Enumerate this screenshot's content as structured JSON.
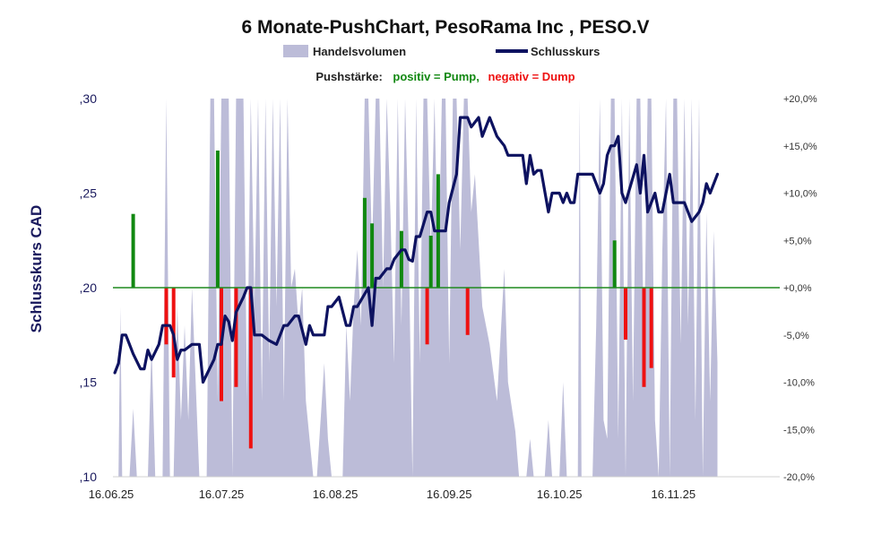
{
  "chart_data": {
    "type": "line",
    "title": "6 Monate-PushChart, PesoRama Inc , PESO.V",
    "legend": [
      {
        "name": "Handelsvolumen",
        "color": "#bcbcd8"
      },
      {
        "name": "Schlusskurs",
        "color": "#0d1260"
      }
    ],
    "push_label": "Pushstärke:",
    "push_positive": "positiv = Pump,",
    "push_negative": "negativ = Dump",
    "ylabel": "Schlusskurs CAD",
    "ylim": [
      0.1,
      0.3
    ],
    "yticks": [
      ",30",
      ",25",
      ",20",
      ",15",
      ",10"
    ],
    "y2lim": [
      -20,
      20
    ],
    "y2ticks": [
      "+20,0%",
      "+15,0%",
      "+10,0%",
      "+5,0%",
      "+0,0%",
      "-5,0%",
      "-10,0%",
      "-15,0%",
      "-20,0%"
    ],
    "xticks": [
      "16.06.25",
      "16.07.25",
      "16.08.25",
      "16.09.25",
      "16.10.25",
      "16.11.25"
    ],
    "xrange_days": [
      0,
      183
    ],
    "colors": {
      "close": "#0d1260",
      "volume": "#bcbcd8",
      "pump": "#118811",
      "dump": "#ee1111",
      "zero": "#1f8a1f"
    },
    "close": [
      {
        "d": 1,
        "y": 0.155
      },
      {
        "d": 2,
        "y": 0.16
      },
      {
        "d": 3,
        "y": 0.175
      },
      {
        "d": 4,
        "y": 0.175
      },
      {
        "d": 6,
        "y": 0.165
      },
      {
        "d": 8,
        "y": 0.157
      },
      {
        "d": 9,
        "y": 0.157
      },
      {
        "d": 10,
        "y": 0.167
      },
      {
        "d": 11,
        "y": 0.162
      },
      {
        "d": 13,
        "y": 0.17
      },
      {
        "d": 14,
        "y": 0.18
      },
      {
        "d": 16,
        "y": 0.18
      },
      {
        "d": 17,
        "y": 0.175
      },
      {
        "d": 18,
        "y": 0.162
      },
      {
        "d": 19,
        "y": 0.167
      },
      {
        "d": 20,
        "y": 0.167
      },
      {
        "d": 22,
        "y": 0.17
      },
      {
        "d": 24,
        "y": 0.17
      },
      {
        "d": 25,
        "y": 0.15
      },
      {
        "d": 28,
        "y": 0.162
      },
      {
        "d": 29,
        "y": 0.17
      },
      {
        "d": 30,
        "y": 0.17
      },
      {
        "d": 31,
        "y": 0.185
      },
      {
        "d": 32,
        "y": 0.182
      },
      {
        "d": 33,
        "y": 0.172
      },
      {
        "d": 34,
        "y": 0.187
      },
      {
        "d": 36,
        "y": 0.195
      },
      {
        "d": 37,
        "y": 0.2
      },
      {
        "d": 38,
        "y": 0.2
      },
      {
        "d": 39,
        "y": 0.175
      },
      {
        "d": 40,
        "y": 0.175
      },
      {
        "d": 41,
        "y": 0.175
      },
      {
        "d": 43,
        "y": 0.172
      },
      {
        "d": 45,
        "y": 0.17
      },
      {
        "d": 46,
        "y": 0.175
      },
      {
        "d": 47,
        "y": 0.18
      },
      {
        "d": 48,
        "y": 0.18
      },
      {
        "d": 50,
        "y": 0.185
      },
      {
        "d": 51,
        "y": 0.185
      },
      {
        "d": 53,
        "y": 0.17
      },
      {
        "d": 54,
        "y": 0.18
      },
      {
        "d": 55,
        "y": 0.175
      },
      {
        "d": 56,
        "y": 0.175
      },
      {
        "d": 58,
        "y": 0.175
      },
      {
        "d": 59,
        "y": 0.19
      },
      {
        "d": 60,
        "y": 0.19
      },
      {
        "d": 62,
        "y": 0.195
      },
      {
        "d": 64,
        "y": 0.18
      },
      {
        "d": 65,
        "y": 0.18
      },
      {
        "d": 66,
        "y": 0.19
      },
      {
        "d": 67,
        "y": 0.19
      },
      {
        "d": 70,
        "y": 0.2
      },
      {
        "d": 71,
        "y": 0.18
      },
      {
        "d": 72,
        "y": 0.205
      },
      {
        "d": 73,
        "y": 0.205
      },
      {
        "d": 75,
        "y": 0.21
      },
      {
        "d": 76,
        "y": 0.21
      },
      {
        "d": 77,
        "y": 0.215
      },
      {
        "d": 79,
        "y": 0.22
      },
      {
        "d": 80,
        "y": 0.22
      },
      {
        "d": 81,
        "y": 0.215
      },
      {
        "d": 82,
        "y": 0.214
      },
      {
        "d": 83,
        "y": 0.227
      },
      {
        "d": 84,
        "y": 0.227
      },
      {
        "d": 86,
        "y": 0.24
      },
      {
        "d": 87,
        "y": 0.24
      },
      {
        "d": 88,
        "y": 0.23
      },
      {
        "d": 90,
        "y": 0.23
      },
      {
        "d": 91,
        "y": 0.23
      },
      {
        "d": 92,
        "y": 0.245
      },
      {
        "d": 94,
        "y": 0.26
      },
      {
        "d": 95,
        "y": 0.29
      },
      {
        "d": 97,
        "y": 0.29
      },
      {
        "d": 98,
        "y": 0.285
      },
      {
        "d": 100,
        "y": 0.29
      },
      {
        "d": 101,
        "y": 0.28
      },
      {
        "d": 103,
        "y": 0.29
      },
      {
        "d": 105,
        "y": 0.28
      },
      {
        "d": 107,
        "y": 0.275
      },
      {
        "d": 108,
        "y": 0.27
      },
      {
        "d": 110,
        "y": 0.27
      },
      {
        "d": 112,
        "y": 0.27
      },
      {
        "d": 113,
        "y": 0.255
      },
      {
        "d": 114,
        "y": 0.27
      },
      {
        "d": 115,
        "y": 0.26
      },
      {
        "d": 116,
        "y": 0.262
      },
      {
        "d": 117,
        "y": 0.262
      },
      {
        "d": 119,
        "y": 0.24
      },
      {
        "d": 120,
        "y": 0.25
      },
      {
        "d": 122,
        "y": 0.25
      },
      {
        "d": 123,
        "y": 0.245
      },
      {
        "d": 124,
        "y": 0.25
      },
      {
        "d": 125,
        "y": 0.245
      },
      {
        "d": 126,
        "y": 0.245
      },
      {
        "d": 127,
        "y": 0.26
      },
      {
        "d": 131,
        "y": 0.26
      },
      {
        "d": 133,
        "y": 0.25
      },
      {
        "d": 134,
        "y": 0.255
      },
      {
        "d": 135,
        "y": 0.27
      },
      {
        "d": 136,
        "y": 0.275
      },
      {
        "d": 137,
        "y": 0.275
      },
      {
        "d": 138,
        "y": 0.28
      },
      {
        "d": 139,
        "y": 0.25
      },
      {
        "d": 140,
        "y": 0.245
      },
      {
        "d": 143,
        "y": 0.265
      },
      {
        "d": 144,
        "y": 0.25
      },
      {
        "d": 145,
        "y": 0.27
      },
      {
        "d": 146,
        "y": 0.24
      },
      {
        "d": 148,
        "y": 0.25
      },
      {
        "d": 149,
        "y": 0.24
      },
      {
        "d": 150,
        "y": 0.24
      },
      {
        "d": 152,
        "y": 0.26
      },
      {
        "d": 153,
        "y": 0.245
      },
      {
        "d": 156,
        "y": 0.245
      },
      {
        "d": 158,
        "y": 0.235
      },
      {
        "d": 160,
        "y": 0.24
      },
      {
        "d": 161,
        "y": 0.245
      },
      {
        "d": 162,
        "y": 0.255
      },
      {
        "d": 163,
        "y": 0.25
      },
      {
        "d": 165,
        "y": 0.26
      }
    ],
    "push": [
      {
        "d": 6,
        "v": 7.8
      },
      {
        "d": 15,
        "v": -6.0
      },
      {
        "d": 17,
        "v": -9.5
      },
      {
        "d": 29,
        "v": 14.5
      },
      {
        "d": 30,
        "v": -12.0
      },
      {
        "d": 34,
        "v": -10.5
      },
      {
        "d": 38,
        "v": -17.0
      },
      {
        "d": 69,
        "v": 9.5
      },
      {
        "d": 71,
        "v": 6.8
      },
      {
        "d": 79,
        "v": 6.0
      },
      {
        "d": 86,
        "v": -6.0
      },
      {
        "d": 87,
        "v": 5.5
      },
      {
        "d": 89,
        "v": 12.0
      },
      {
        "d": 97,
        "v": -5.0
      },
      {
        "d": 137,
        "v": 5.0
      },
      {
        "d": 140,
        "v": -5.5
      },
      {
        "d": 145,
        "v": -10.5
      },
      {
        "d": 147,
        "v": -8.5
      }
    ],
    "volume_scale": [
      0,
      100
    ],
    "volume": [
      {
        "d": 0,
        "v": 0
      },
      {
        "d": 2,
        "v": 0
      },
      {
        "d": 2.5,
        "v": 45
      },
      {
        "d": 3,
        "v": 0
      },
      {
        "d": 5,
        "v": 0
      },
      {
        "d": 6,
        "v": 18
      },
      {
        "d": 7,
        "v": 0
      },
      {
        "d": 10,
        "v": 0
      },
      {
        "d": 11,
        "v": 35
      },
      {
        "d": 12,
        "v": 0
      },
      {
        "d": 14,
        "v": 0
      },
      {
        "d": 15,
        "v": 100
      },
      {
        "d": 16,
        "v": 0
      },
      {
        "d": 17,
        "v": 0
      },
      {
        "d": 18,
        "v": 45
      },
      {
        "d": 19,
        "v": 15
      },
      {
        "d": 20,
        "v": 40
      },
      {
        "d": 21,
        "v": 15
      },
      {
        "d": 22,
        "v": 50
      },
      {
        "d": 24,
        "v": 0
      },
      {
        "d": 26,
        "v": 0
      },
      {
        "d": 27,
        "v": 100
      },
      {
        "d": 28,
        "v": 100
      },
      {
        "d": 29,
        "v": 20
      },
      {
        "d": 30,
        "v": 100
      },
      {
        "d": 32,
        "v": 100
      },
      {
        "d": 33,
        "v": 0
      },
      {
        "d": 34,
        "v": 100
      },
      {
        "d": 36,
        "v": 100
      },
      {
        "d": 37,
        "v": 20
      },
      {
        "d": 38,
        "v": 100
      },
      {
        "d": 39,
        "v": 45
      },
      {
        "d": 40,
        "v": 100
      },
      {
        "d": 41,
        "v": 20
      },
      {
        "d": 42,
        "v": 100
      },
      {
        "d": 43,
        "v": 30
      },
      {
        "d": 44,
        "v": 100
      },
      {
        "d": 45,
        "v": 45
      },
      {
        "d": 46,
        "v": 100
      },
      {
        "d": 47,
        "v": 20
      },
      {
        "d": 48,
        "v": 100
      },
      {
        "d": 49,
        "v": 50
      },
      {
        "d": 50,
        "v": 55
      },
      {
        "d": 51,
        "v": 40
      },
      {
        "d": 52,
        "v": 50
      },
      {
        "d": 53,
        "v": 20
      },
      {
        "d": 55,
        "v": 0
      },
      {
        "d": 56,
        "v": 0
      },
      {
        "d": 57,
        "v": 15
      },
      {
        "d": 58,
        "v": 30
      },
      {
        "d": 59,
        "v": 10
      },
      {
        "d": 60,
        "v": 0
      },
      {
        "d": 63,
        "v": 0
      },
      {
        "d": 64,
        "v": 40
      },
      {
        "d": 65,
        "v": 20
      },
      {
        "d": 66,
        "v": 45
      },
      {
        "d": 67,
        "v": 60
      },
      {
        "d": 68,
        "v": 40
      },
      {
        "d": 69,
        "v": 100
      },
      {
        "d": 70,
        "v": 100
      },
      {
        "d": 71,
        "v": 60
      },
      {
        "d": 72,
        "v": 100
      },
      {
        "d": 73,
        "v": 100
      },
      {
        "d": 74,
        "v": 50
      },
      {
        "d": 75,
        "v": 100
      },
      {
        "d": 76,
        "v": 70
      },
      {
        "d": 77,
        "v": 30
      },
      {
        "d": 78,
        "v": 100
      },
      {
        "d": 79,
        "v": 40
      },
      {
        "d": 80,
        "v": 100
      },
      {
        "d": 81,
        "v": 60
      },
      {
        "d": 82,
        "v": 0
      },
      {
        "d": 83,
        "v": 100
      },
      {
        "d": 84,
        "v": 30
      },
      {
        "d": 85,
        "v": 100
      },
      {
        "d": 86,
        "v": 100
      },
      {
        "d": 87,
        "v": 60
      },
      {
        "d": 88,
        "v": 100
      },
      {
        "d": 89,
        "v": 50
      },
      {
        "d": 90,
        "v": 100
      },
      {
        "d": 91,
        "v": 100
      },
      {
        "d": 92,
        "v": 30
      },
      {
        "d": 93,
        "v": 100
      },
      {
        "d": 94,
        "v": 100
      },
      {
        "d": 95,
        "v": 60
      },
      {
        "d": 96,
        "v": 100
      },
      {
        "d": 97,
        "v": 100
      },
      {
        "d": 98,
        "v": 70
      },
      {
        "d": 99,
        "v": 80
      },
      {
        "d": 101,
        "v": 45
      },
      {
        "d": 103,
        "v": 35
      },
      {
        "d": 105,
        "v": 20
      },
      {
        "d": 107,
        "v": 55
      },
      {
        "d": 108,
        "v": 25
      },
      {
        "d": 110,
        "v": 12
      },
      {
        "d": 111,
        "v": 0
      },
      {
        "d": 113,
        "v": 0
      },
      {
        "d": 114,
        "v": 10
      },
      {
        "d": 115,
        "v": 0
      },
      {
        "d": 118,
        "v": 0
      },
      {
        "d": 119,
        "v": 15
      },
      {
        "d": 120,
        "v": 0
      },
      {
        "d": 122,
        "v": 0
      },
      {
        "d": 123,
        "v": 25
      },
      {
        "d": 124,
        "v": 0
      },
      {
        "d": 127,
        "v": 0
      },
      {
        "d": 127.5,
        "v": 100
      },
      {
        "d": 128,
        "v": 0
      },
      {
        "d": 131,
        "v": 0
      },
      {
        "d": 132,
        "v": 40
      },
      {
        "d": 133,
        "v": 100
      },
      {
        "d": 134,
        "v": 15
      },
      {
        "d": 135,
        "v": 10
      },
      {
        "d": 136,
        "v": 100
      },
      {
        "d": 137,
        "v": 100
      },
      {
        "d": 138,
        "v": 10
      },
      {
        "d": 139,
        "v": 100
      },
      {
        "d": 140,
        "v": 0
      },
      {
        "d": 141,
        "v": 100
      },
      {
        "d": 142,
        "v": 20
      },
      {
        "d": 143,
        "v": 100
      },
      {
        "d": 144,
        "v": 100
      },
      {
        "d": 145,
        "v": 30
      },
      {
        "d": 146,
        "v": 100
      },
      {
        "d": 147,
        "v": 100
      },
      {
        "d": 148,
        "v": 15
      },
      {
        "d": 149,
        "v": 0
      },
      {
        "d": 150,
        "v": 60
      },
      {
        "d": 151,
        "v": 100
      },
      {
        "d": 152,
        "v": 0
      },
      {
        "d": 153,
        "v": 100
      },
      {
        "d": 154,
        "v": 100
      },
      {
        "d": 155,
        "v": 35
      },
      {
        "d": 156,
        "v": 100
      },
      {
        "d": 157,
        "v": 40
      },
      {
        "d": 158,
        "v": 100
      },
      {
        "d": 159,
        "v": 15
      },
      {
        "d": 160,
        "v": 100
      },
      {
        "d": 161,
        "v": 0
      },
      {
        "d": 162,
        "v": 70
      },
      {
        "d": 163,
        "v": 20
      },
      {
        "d": 164,
        "v": 65
      },
      {
        "d": 165,
        "v": 30
      }
    ]
  }
}
